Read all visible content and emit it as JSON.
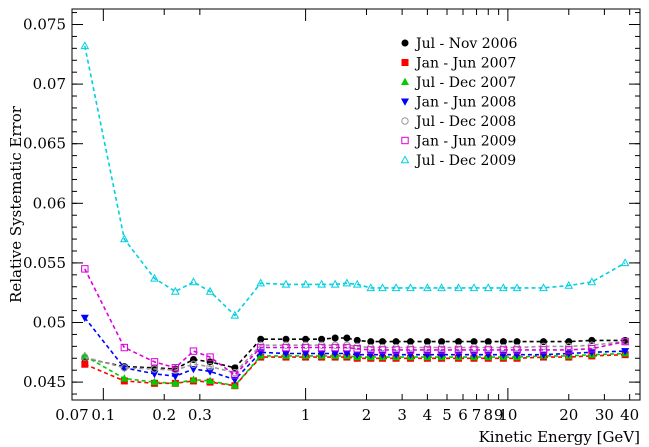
{
  "chart_data": {
    "type": "line",
    "title": "",
    "xlabel": "Kinetic Energy [GeV]",
    "ylabel": "Relative Systematic Error",
    "xscale": "log",
    "xlim": [
      0.07,
      45
    ],
    "ylim": [
      0.0435,
      0.0763
    ],
    "grid": false,
    "legend_position": "top-right",
    "x_ticks": [
      {
        "value": 0.07,
        "label": "0.07"
      },
      {
        "value": 0.1,
        "label": "0.1"
      },
      {
        "value": 0.2,
        "label": "0.2"
      },
      {
        "value": 0.3,
        "label": "0.3"
      },
      {
        "value": 1,
        "label": "1"
      },
      {
        "value": 2,
        "label": "2"
      },
      {
        "value": 3,
        "label": "3"
      },
      {
        "value": 4,
        "label": "4"
      },
      {
        "value": 5,
        "label": "5"
      },
      {
        "value": 6,
        "label": "6"
      },
      {
        "value": 7,
        "label": "7"
      },
      {
        "value": 8,
        "label": "8"
      },
      {
        "value": 9,
        "label": "9"
      },
      {
        "value": 10,
        "label": "10"
      },
      {
        "value": 20,
        "label": "20"
      },
      {
        "value": 30,
        "label": "30"
      },
      {
        "value": 40,
        "label": "40"
      }
    ],
    "y_ticks": [
      {
        "value": 0.045,
        "label": "0.045"
      },
      {
        "value": 0.05,
        "label": "0.05"
      },
      {
        "value": 0.055,
        "label": "0.055"
      },
      {
        "value": 0.06,
        "label": "0.06"
      },
      {
        "value": 0.065,
        "label": "0.065"
      },
      {
        "value": 0.07,
        "label": "0.07"
      },
      {
        "value": 0.075,
        "label": "0.075"
      }
    ],
    "x": [
      0.081,
      0.127,
      0.179,
      0.227,
      0.279,
      0.337,
      0.447,
      0.6,
      0.8,
      1.0,
      1.2,
      1.4,
      1.6,
      1.8,
      2.1,
      2.4,
      2.8,
      3.3,
      4.0,
      4.7,
      5.7,
      6.8,
      8.0,
      9.5,
      11.1,
      15.0,
      20.0,
      26.0,
      38.0
    ],
    "series": [
      {
        "name": "Jul - Nov 2006",
        "marker": "filled-circle",
        "color": "#000000",
        "values": [
          0.047,
          0.0463,
          0.0462,
          0.0461,
          0.0469,
          0.0467,
          0.0462,
          0.0486,
          0.0486,
          0.0486,
          0.0486,
          0.0487,
          0.0487,
          0.0485,
          0.0484,
          0.0484,
          0.0484,
          0.0484,
          0.0484,
          0.0484,
          0.0484,
          0.0484,
          0.0484,
          0.0484,
          0.0484,
          0.0484,
          0.0484,
          0.0485,
          0.0485
        ]
      },
      {
        "name": "Jan - Jun 2007",
        "marker": "filled-square",
        "color": "#ff0000",
        "values": [
          0.0465,
          0.0451,
          0.0449,
          0.0449,
          0.0451,
          0.045,
          0.0447,
          0.0471,
          0.0471,
          0.0471,
          0.0471,
          0.0471,
          0.0471,
          0.047,
          0.047,
          0.047,
          0.047,
          0.047,
          0.047,
          0.047,
          0.047,
          0.047,
          0.047,
          0.047,
          0.047,
          0.0471,
          0.0471,
          0.0472,
          0.0473
        ]
      },
      {
        "name": "Jul - Dec 2007",
        "marker": "filled-triangle-up",
        "color": "#00cc00",
        "values": [
          0.0472,
          0.0453,
          0.045,
          0.0449,
          0.0452,
          0.0451,
          0.0447,
          0.0472,
          0.0472,
          0.0472,
          0.0472,
          0.0472,
          0.0472,
          0.0471,
          0.0471,
          0.0471,
          0.0471,
          0.0471,
          0.0471,
          0.0471,
          0.0471,
          0.0471,
          0.0471,
          0.0471,
          0.0471,
          0.0472,
          0.0472,
          0.0473,
          0.0474
        ]
      },
      {
        "name": "Jan - Jun 2008",
        "marker": "filled-triangle-down",
        "color": "#0000ff",
        "values": [
          0.0504,
          0.0462,
          0.0457,
          0.0455,
          0.0461,
          0.0459,
          0.0452,
          0.0475,
          0.0474,
          0.0474,
          0.0474,
          0.0474,
          0.0474,
          0.0473,
          0.0473,
          0.0473,
          0.0473,
          0.0473,
          0.0473,
          0.0473,
          0.0473,
          0.0473,
          0.0473,
          0.0473,
          0.0473,
          0.0473,
          0.0474,
          0.0475,
          0.0476
        ]
      },
      {
        "name": "Jul - Dec 2008",
        "marker": "open-circle",
        "color": "#999999",
        "values": [
          0.0471,
          0.0462,
          0.0461,
          0.046,
          0.0465,
          0.0463,
          0.0458,
          0.0481,
          0.0481,
          0.0481,
          0.0481,
          0.0481,
          0.0481,
          0.048,
          0.0479,
          0.0479,
          0.0479,
          0.0479,
          0.0479,
          0.0479,
          0.0479,
          0.0479,
          0.0479,
          0.0479,
          0.0479,
          0.048,
          0.048,
          0.0481,
          0.0484
        ]
      },
      {
        "name": "Jan - Jun 2009",
        "marker": "open-square",
        "color": "#dd00dd",
        "values": [
          0.0545,
          0.0479,
          0.0467,
          0.0462,
          0.0476,
          0.0471,
          0.0456,
          0.0479,
          0.0479,
          0.0479,
          0.0479,
          0.0479,
          0.0479,
          0.0478,
          0.0477,
          0.0477,
          0.0477,
          0.0477,
          0.0477,
          0.0477,
          0.0477,
          0.0477,
          0.0477,
          0.0477,
          0.0477,
          0.0477,
          0.0477,
          0.0478,
          0.0484
        ]
      },
      {
        "name": "Jul - Dec 2009",
        "marker": "open-triangle-up",
        "color": "#00d0e0",
        "values": [
          0.0732,
          0.057,
          0.0537,
          0.0526,
          0.0534,
          0.0526,
          0.0506,
          0.0533,
          0.0532,
          0.0532,
          0.0532,
          0.0532,
          0.0533,
          0.0532,
          0.0529,
          0.0529,
          0.0529,
          0.0529,
          0.0529,
          0.0529,
          0.0529,
          0.0529,
          0.0529,
          0.0529,
          0.0529,
          0.0529,
          0.0531,
          0.0534,
          0.055
        ]
      }
    ]
  }
}
